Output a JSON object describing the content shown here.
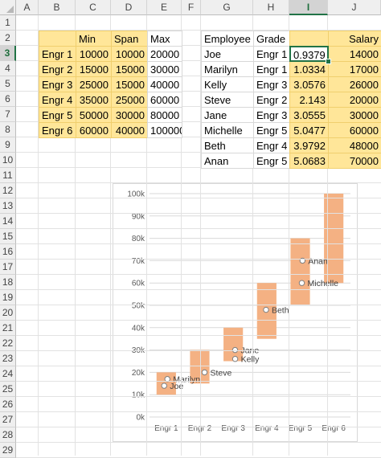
{
  "columns": [
    "A",
    "B",
    "C",
    "D",
    "E",
    "F",
    "G",
    "H",
    "I",
    "J"
  ],
  "rows": [
    "1",
    "2",
    "3",
    "4",
    "5",
    "6",
    "7",
    "8",
    "9",
    "10",
    "11",
    "12",
    "13",
    "14",
    "15",
    "16",
    "17",
    "18",
    "19",
    "20",
    "21",
    "22",
    "23",
    "24",
    "25",
    "26",
    "27",
    "28",
    "29"
  ],
  "selected_column": "I",
  "selected_row": "3",
  "grade_table": {
    "headers": [
      "",
      "Min",
      "Span",
      "Max"
    ],
    "rows": [
      {
        "grade": "Engr 1",
        "min": "10000",
        "span": "10000",
        "max": "20000"
      },
      {
        "grade": "Engr 2",
        "min": "15000",
        "span": "15000",
        "max": "30000"
      },
      {
        "grade": "Engr 3",
        "min": "25000",
        "span": "15000",
        "max": "40000"
      },
      {
        "grade": "Engr 4",
        "min": "35000",
        "span": "25000",
        "max": "60000"
      },
      {
        "grade": "Engr 5",
        "min": "50000",
        "span": "30000",
        "max": "80000"
      },
      {
        "grade": "Engr 6",
        "min": "60000",
        "span": "40000",
        "max": "100000"
      }
    ]
  },
  "employee_table": {
    "headers": [
      "Employee",
      "Grade",
      "",
      "Salary"
    ],
    "rows": [
      {
        "name": "Joe",
        "grade": "Engr 1",
        "pos": "0.9379",
        "salary": "14000"
      },
      {
        "name": "Marilyn",
        "grade": "Engr 1",
        "pos": "1.0334",
        "salary": "17000"
      },
      {
        "name": "Kelly",
        "grade": "Engr 3",
        "pos": "3.0576",
        "salary": "26000"
      },
      {
        "name": "Steve",
        "grade": "Engr 2",
        "pos": "2.143",
        "salary": "20000"
      },
      {
        "name": "Jane",
        "grade": "Engr 3",
        "pos": "3.0555",
        "salary": "30000"
      },
      {
        "name": "Michelle",
        "grade": "Engr 5",
        "pos": "5.0477",
        "salary": "60000"
      },
      {
        "name": "Beth",
        "grade": "Engr 4",
        "pos": "3.9792",
        "salary": "48000"
      },
      {
        "name": "Anan",
        "grade": "Engr 5",
        "pos": "5.0683",
        "salary": "70000"
      }
    ]
  },
  "chart_data": {
    "type": "bar",
    "subtype": "floating-range-with-scatter",
    "categories": [
      "Engr 1",
      "Engr 2",
      "Engr 3",
      "Engr 4",
      "Engr 5",
      "Engr 6"
    ],
    "ranges": [
      {
        "min": 10000,
        "max": 20000
      },
      {
        "min": 15000,
        "max": 30000
      },
      {
        "min": 25000,
        "max": 40000
      },
      {
        "min": 35000,
        "max": 60000
      },
      {
        "min": 50000,
        "max": 80000
      },
      {
        "min": 60000,
        "max": 100000
      }
    ],
    "points": [
      {
        "label": "Joe",
        "x": 0.9379,
        "y": 14000
      },
      {
        "label": "Marilyn",
        "x": 1.0334,
        "y": 17000
      },
      {
        "label": "Kelly",
        "x": 3.0576,
        "y": 26000
      },
      {
        "label": "Steve",
        "x": 2.143,
        "y": 20000
      },
      {
        "label": "Jane",
        "x": 3.0555,
        "y": 30000
      },
      {
        "label": "Michelle",
        "x": 5.0477,
        "y": 60000
      },
      {
        "label": "Beth",
        "x": 3.9792,
        "y": 48000
      },
      {
        "label": "Anan",
        "x": 5.0683,
        "y": 70000
      }
    ],
    "y_ticks": [
      "0k",
      "10k",
      "20k",
      "30k",
      "40k",
      "50k",
      "60k",
      "70k",
      "80k",
      "90k",
      "100k"
    ],
    "ylim": [
      0,
      100000
    ],
    "xlim": [
      0.5,
      6.5
    ],
    "bar_color": "#f4b183",
    "marker_color": "#ffffff",
    "marker_edge": "#7f7f7f",
    "grid": true,
    "legend": "none"
  }
}
